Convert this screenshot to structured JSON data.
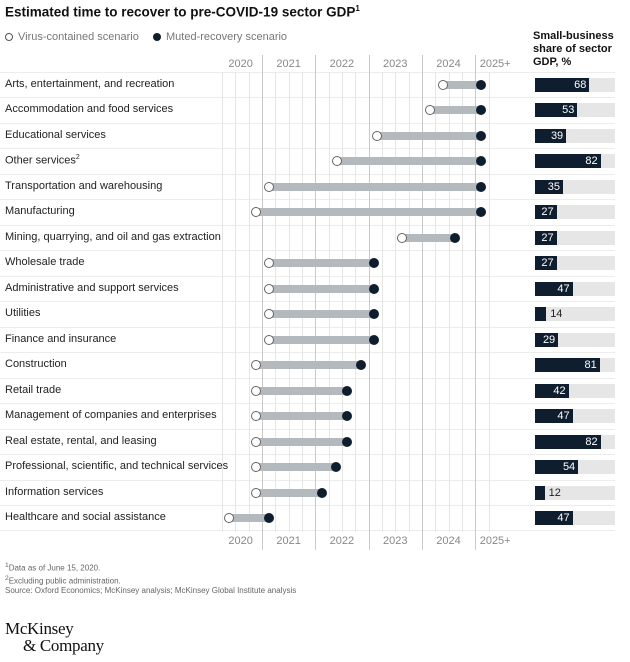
{
  "title": "Estimated time to recover to pre-COVID-19 sector GDP",
  "title_footnote": "1",
  "legend": {
    "open": "Virus-contained scenario",
    "filled": "Muted-recovery scenario"
  },
  "small_business_header": [
    "Small-business",
    "share of sector",
    "GDP, %"
  ],
  "colors": {
    "filled": "#0f1e2e",
    "range_bar": "#b4b9be",
    "track": "#e6e6e6"
  },
  "chart_data": {
    "type": "dumbbell-with-bars",
    "title": "Estimated time to recover to pre-COVID-19 sector GDP",
    "x_ticks": [
      "2020",
      "2021",
      "2022",
      "2023",
      "2024",
      "2025+"
    ],
    "xlim": [
      2020.25,
      2025.5
    ],
    "grid": true,
    "legend_position": "top-left",
    "rows": [
      {
        "sector": "Arts, entertainment, and recreation",
        "footnote": "",
        "virus_contained": 2024.4,
        "muted_recovery": 2025.1,
        "small_business_share": 68
      },
      {
        "sector": "Accommodation and food services",
        "footnote": "",
        "virus_contained": 2024.15,
        "muted_recovery": 2025.1,
        "small_business_share": 53
      },
      {
        "sector": "Educational services",
        "footnote": "",
        "virus_contained": 2023.15,
        "muted_recovery": 2025.1,
        "small_business_share": 39
      },
      {
        "sector": "Other services",
        "footnote": "2",
        "virus_contained": 2022.4,
        "muted_recovery": 2025.1,
        "small_business_share": 82
      },
      {
        "sector": "Transportation and warehousing",
        "footnote": "",
        "virus_contained": 2021.13,
        "muted_recovery": 2025.1,
        "small_business_share": 35
      },
      {
        "sector": "Manufacturing",
        "footnote": "",
        "virus_contained": 2020.88,
        "muted_recovery": 2025.1,
        "small_business_share": 27
      },
      {
        "sector": "Mining, quarrying, and oil and gas extraction",
        "footnote": "",
        "virus_contained": 2023.63,
        "muted_recovery": 2024.63,
        "small_business_share": 27
      },
      {
        "sector": "Wholesale trade",
        "footnote": "",
        "virus_contained": 2021.13,
        "muted_recovery": 2023.1,
        "small_business_share": 27
      },
      {
        "sector": "Administrative and support services",
        "footnote": "",
        "virus_contained": 2021.13,
        "muted_recovery": 2023.1,
        "small_business_share": 47
      },
      {
        "sector": "Utilities",
        "footnote": "",
        "virus_contained": 2021.13,
        "muted_recovery": 2023.1,
        "small_business_share": 14
      },
      {
        "sector": "Finance and insurance",
        "footnote": "",
        "virus_contained": 2021.13,
        "muted_recovery": 2023.1,
        "small_business_share": 29
      },
      {
        "sector": "Construction",
        "footnote": "",
        "virus_contained": 2020.88,
        "muted_recovery": 2022.85,
        "small_business_share": 81
      },
      {
        "sector": "Retail trade",
        "footnote": "",
        "virus_contained": 2020.88,
        "muted_recovery": 2022.6,
        "small_business_share": 42
      },
      {
        "sector": "Management of companies and enterprises",
        "footnote": "",
        "virus_contained": 2020.88,
        "muted_recovery": 2022.6,
        "small_business_share": 47
      },
      {
        "sector": "Real estate, rental, and leasing",
        "footnote": "",
        "virus_contained": 2020.88,
        "muted_recovery": 2022.6,
        "small_business_share": 82
      },
      {
        "sector": "Professional, scientific, and technical services",
        "footnote": "",
        "virus_contained": 2020.88,
        "muted_recovery": 2022.38,
        "small_business_share": 54
      },
      {
        "sector": "Information services",
        "footnote": "",
        "virus_contained": 2020.88,
        "muted_recovery": 2022.13,
        "small_business_share": 12
      },
      {
        "sector": "Healthcare and social assistance",
        "footnote": "",
        "virus_contained": 2020.38,
        "muted_recovery": 2021.13,
        "small_business_share": 47
      }
    ]
  },
  "footnotes": [
    {
      "mark": "1",
      "text": "Data as of June 15, 2020."
    },
    {
      "mark": "2",
      "text": "Excluding public administration."
    },
    {
      "mark": "",
      "text": " Source: Oxford Economics; McKinsey analysis; McKinsey Global Institute analysis"
    }
  ],
  "logo": [
    "McKinsey",
    "& Company"
  ]
}
